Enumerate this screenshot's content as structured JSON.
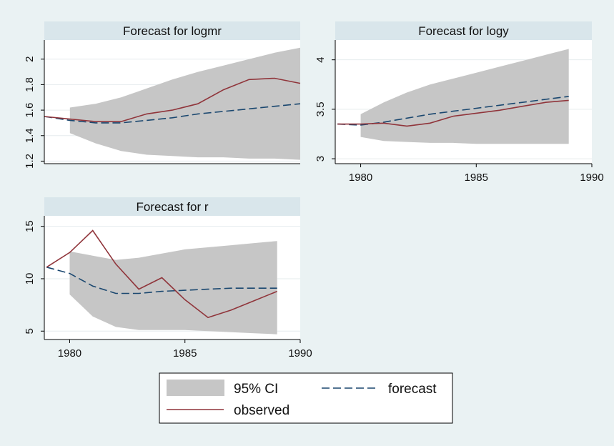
{
  "chart_data": [
    {
      "type": "line",
      "title": "Forecast for logmr",
      "x": [
        1979,
        1980,
        1981,
        1982,
        1983,
        1984,
        1985,
        1986,
        1987,
        1988,
        1989
      ],
      "xlim": [
        1979,
        1989
      ],
      "xticks": [],
      "ylim": [
        1.18,
        2.15
      ],
      "yticks": [
        "1.2",
        "1.4",
        "1.6",
        "1.8",
        "2"
      ],
      "y_tick_values": [
        1.2,
        1.4,
        1.6,
        1.8,
        2.0
      ],
      "ci_start": 1980,
      "ci_lower": [
        1.42,
        1.34,
        1.28,
        1.25,
        1.24,
        1.23,
        1.23,
        1.22,
        1.22,
        1.21
      ],
      "ci_upper": [
        1.62,
        1.65,
        1.7,
        1.77,
        1.84,
        1.9,
        1.95,
        2.0,
        2.05,
        2.09
      ],
      "forecast": [
        1.55,
        1.52,
        1.5,
        1.5,
        1.52,
        1.54,
        1.57,
        1.59,
        1.61,
        1.63,
        1.65
      ],
      "observed": [
        1.55,
        1.53,
        1.51,
        1.51,
        1.57,
        1.6,
        1.65,
        1.76,
        1.84,
        1.85,
        1.81
      ]
    },
    {
      "type": "line",
      "title": "Forecast for logy",
      "x": [
        1979,
        1980,
        1981,
        1982,
        1983,
        1984,
        1985,
        1986,
        1987,
        1988,
        1989
      ],
      "xlim": [
        1978.9,
        1990
      ],
      "xticks": [
        "1980",
        "1985",
        "1990"
      ],
      "x_tick_values": [
        1980,
        1985,
        1990
      ],
      "ylim": [
        2.95,
        4.2
      ],
      "yticks": [
        "3",
        "3.5",
        "4"
      ],
      "y_tick_values": [
        3,
        3.5,
        4
      ],
      "ci_start": 1980,
      "ci_lower": [
        3.22,
        3.18,
        3.17,
        3.16,
        3.16,
        3.15,
        3.15,
        3.15,
        3.15,
        3.15
      ],
      "ci_upper": [
        3.45,
        3.57,
        3.67,
        3.75,
        3.81,
        3.87,
        3.93,
        3.99,
        4.05,
        4.11
      ],
      "forecast": [
        3.35,
        3.34,
        3.37,
        3.41,
        3.45,
        3.48,
        3.51,
        3.54,
        3.57,
        3.6,
        3.63
      ],
      "observed": [
        3.35,
        3.35,
        3.36,
        3.33,
        3.36,
        3.43,
        3.46,
        3.49,
        3.53,
        3.57,
        3.59
      ]
    },
    {
      "type": "line",
      "title": "Forecast for r",
      "x": [
        1979,
        1980,
        1981,
        1982,
        1983,
        1984,
        1985,
        1986,
        1987,
        1988,
        1989
      ],
      "xlim": [
        1978.9,
        1990
      ],
      "xticks": [
        "1980",
        "1985",
        "1990"
      ],
      "x_tick_values": [
        1980,
        1985,
        1990
      ],
      "ylim": [
        4.2,
        16.0
      ],
      "yticks": [
        "5",
        "10",
        "15"
      ],
      "y_tick_values": [
        5,
        10,
        15
      ],
      "ci_start": 1980,
      "ci_lower": [
        8.5,
        6.4,
        5.4,
        5.1,
        5.1,
        5.1,
        5.0,
        4.9,
        4.8,
        4.7
      ],
      "ci_upper": [
        12.6,
        12.2,
        11.8,
        12.0,
        12.4,
        12.8,
        13.0,
        13.2,
        13.4,
        13.6
      ],
      "forecast": [
        11.1,
        10.5,
        9.3,
        8.6,
        8.6,
        8.8,
        8.9,
        9.0,
        9.1,
        9.1,
        9.1
      ],
      "observed": [
        11.1,
        12.5,
        14.6,
        11.4,
        9.0,
        10.1,
        8.0,
        6.3,
        7.0,
        7.9,
        8.8
      ]
    }
  ],
  "legend": {
    "ci_label": "95% CI",
    "forecast_label": "forecast",
    "observed_label": "observed",
    "position": "bottom-center"
  },
  "colors": {
    "background": "#eaf2f3",
    "plot_area": "#ffffff",
    "title_band": "#d9e6eb",
    "ci_band": "#c6c6c6",
    "forecast_line": "#1a476f",
    "observed_line": "#90353b",
    "gridline": "#e6ecee"
  }
}
